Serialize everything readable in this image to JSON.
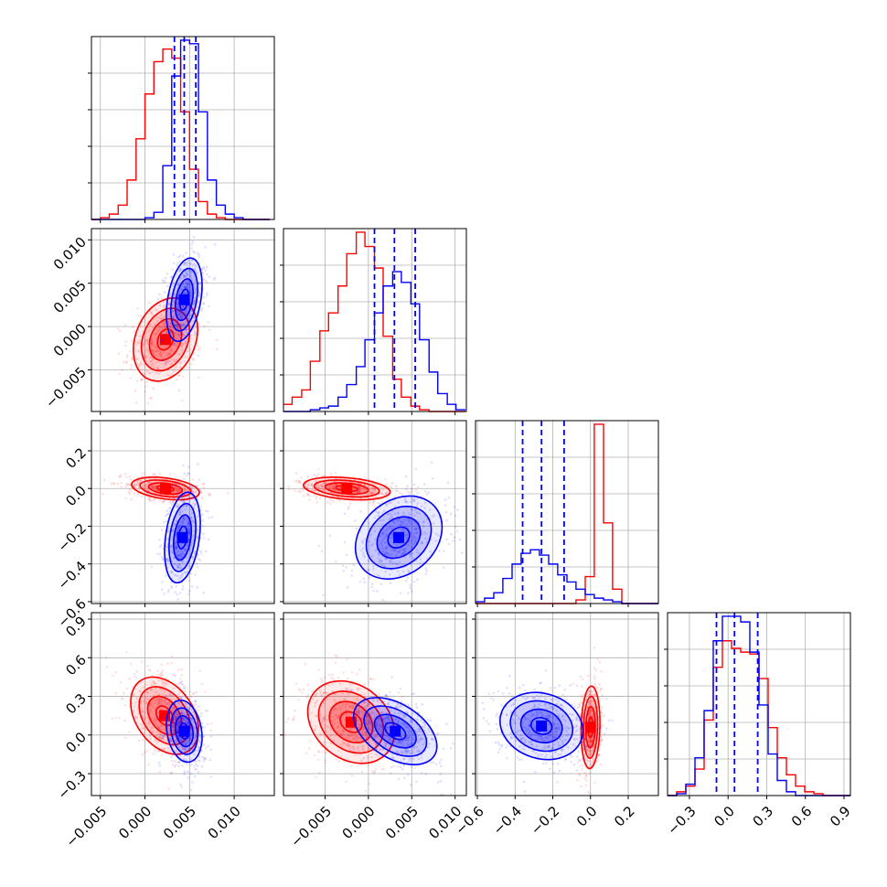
{
  "colors": {
    "series_a": "#ff0000",
    "series_b": "#0000ff"
  },
  "chart_data": {
    "type": "corner",
    "grid": true,
    "series": [
      {
        "name": "",
        "color": "#ff0000"
      },
      {
        "name": "",
        "color": "#0000ff"
      }
    ],
    "parameters": [
      {
        "index": 0,
        "range": [
          -0.006,
          0.0145
        ],
        "ticks": [
          "−0.005",
          "0.000",
          "0.005",
          "0.010"
        ],
        "tick_values": [
          -0.005,
          0.0,
          0.005,
          0.01
        ]
      },
      {
        "index": 1,
        "range": [
          -0.0098,
          0.0113
        ],
        "ticks": [
          "−0.005",
          "0.000",
          "0.005",
          "0.010"
        ],
        "tick_values": [
          -0.005,
          0.0,
          0.005,
          0.01
        ]
      },
      {
        "index": 2,
        "range": [
          -0.61,
          0.36
        ],
        "ticks": [
          "−0.6",
          "−0.4",
          "−0.2",
          "0.0",
          "0.2"
        ],
        "tick_values": [
          -0.6,
          -0.4,
          -0.2,
          0.0,
          0.2
        ]
      },
      {
        "index": 3,
        "range": [
          -0.47,
          0.95
        ],
        "ticks": [
          "−0.3",
          "0.0",
          "0.3",
          "0.6",
          "0.9"
        ],
        "tick_values": [
          -0.3,
          0.0,
          0.3,
          0.6,
          0.9
        ]
      }
    ],
    "quantile_lines": [
      [
        0.0033,
        0.0044,
        0.0057
      ],
      [
        0.0007,
        0.003,
        0.0054
      ],
      [
        -0.36,
        -0.26,
        -0.14
      ],
      [
        -0.09,
        0.05,
        0.23
      ]
    ],
    "histograms": [
      {
        "bin_edges": [
          -0.006,
          -0.005,
          -0.004,
          -0.003,
          -0.002,
          -0.001,
          0.0,
          0.001,
          0.002,
          0.003,
          0.004,
          0.005,
          0.006,
          0.007,
          0.008,
          0.009,
          0.01,
          0.011,
          0.012,
          0.013,
          0.014
        ],
        "a": [
          0,
          1,
          3,
          8,
          22,
          45,
          70,
          88,
          95,
          90,
          60,
          28,
          10,
          3,
          1,
          0,
          0,
          0,
          0,
          0
        ],
        "b": [
          0,
          0,
          0,
          0,
          0,
          0,
          1,
          4,
          30,
          80,
          100,
          98,
          60,
          22,
          8,
          3,
          1,
          0,
          0,
          0
        ]
      },
      {
        "bin_edges": [
          -0.0098,
          -0.0088,
          -0.0077,
          -0.0067,
          -0.0056,
          -0.0046,
          -0.0035,
          -0.0025,
          -0.0014,
          -0.0004,
          0.0007,
          0.0017,
          0.0028,
          0.0038,
          0.0049,
          0.0059,
          0.007,
          0.008,
          0.0091,
          0.0101,
          0.0112
        ],
        "a": [
          4,
          8,
          12,
          28,
          45,
          55,
          70,
          88,
          100,
          92,
          80,
          42,
          18,
          8,
          3,
          1,
          0,
          0,
          0,
          0
        ],
        "b": [
          0,
          0,
          0,
          1,
          2,
          3,
          8,
          15,
          25,
          40,
          55,
          70,
          78,
          72,
          60,
          40,
          22,
          10,
          4,
          1
        ]
      },
      {
        "bin_edges": [
          -0.61,
          -0.562,
          -0.513,
          -0.465,
          -0.416,
          -0.368,
          -0.319,
          -0.271,
          -0.222,
          -0.174,
          -0.125,
          -0.077,
          -0.028,
          0.02,
          0.069,
          0.117,
          0.166,
          0.214,
          0.263,
          0.311,
          0.36
        ],
        "a": [
          0,
          0,
          0,
          0,
          0,
          0,
          0,
          0,
          0,
          0,
          0,
          2,
          15,
          100,
          45,
          8,
          0,
          0,
          0,
          0
        ],
        "b": [
          1,
          3,
          6,
          14,
          22,
          28,
          30,
          27,
          22,
          16,
          12,
          8,
          5,
          3,
          2,
          1,
          0,
          0,
          0,
          0
        ]
      },
      {
        "bin_edges": [
          -0.47,
          -0.399,
          -0.328,
          -0.257,
          -0.186,
          -0.115,
          -0.044,
          0.027,
          0.098,
          0.169,
          0.24,
          0.311,
          0.382,
          0.453,
          0.524,
          0.595,
          0.666,
          0.737,
          0.808,
          0.879,
          0.95
        ],
        "a": [
          0,
          2,
          5,
          14,
          40,
          68,
          82,
          78,
          76,
          75,
          62,
          36,
          20,
          11,
          5,
          2,
          1,
          0,
          0,
          0
        ],
        "b": [
          0,
          1,
          6,
          20,
          45,
          82,
          95,
          95,
          92,
          76,
          48,
          22,
          8,
          2,
          0,
          0,
          0,
          0,
          0,
          0
        ]
      }
    ],
    "pairs": [
      {
        "x": 0,
        "y": 1,
        "a": {
          "mean": [
            0.0023,
            -0.0015
          ],
          "sd": [
            0.0018,
            0.0024
          ],
          "rho": 0.25
        },
        "b": {
          "mean": [
            0.0044,
            0.0031
          ],
          "sd": [
            0.001,
            0.0024
          ],
          "rho": 0.35
        }
      },
      {
        "x": 0,
        "y": 2,
        "a": {
          "mean": [
            0.0023,
            0.0
          ],
          "sd": [
            0.0019,
            0.03
          ],
          "rho": -0.35
        },
        "b": {
          "mean": [
            0.0042,
            -0.26
          ],
          "sd": [
            0.001,
            0.12
          ],
          "rho": 0.3
        }
      },
      {
        "x": 1,
        "y": 2,
        "a": {
          "mean": [
            -0.0025,
            0.0
          ],
          "sd": [
            0.0025,
            0.03
          ],
          "rho": -0.3
        },
        "b": {
          "mean": [
            0.0035,
            -0.26
          ],
          "sd": [
            0.0025,
            0.11
          ],
          "rho": 0.25
        }
      },
      {
        "x": 0,
        "y": 3,
        "a": {
          "mean": [
            0.0022,
            0.15
          ],
          "sd": [
            0.0019,
            0.15
          ],
          "rho": -0.35
        },
        "b": {
          "mean": [
            0.0044,
            0.03
          ],
          "sd": [
            0.001,
            0.12
          ],
          "rho": -0.2
        }
      },
      {
        "x": 1,
        "y": 3,
        "a": {
          "mean": [
            -0.002,
            0.1
          ],
          "sd": [
            0.0025,
            0.16
          ],
          "rho": -0.25
        },
        "b": {
          "mean": [
            0.0031,
            0.03
          ],
          "sd": [
            0.0024,
            0.13
          ],
          "rho": -0.45
        }
      },
      {
        "x": 2,
        "y": 3,
        "a": {
          "mean": [
            0.0,
            0.06
          ],
          "sd": [
            0.025,
            0.16
          ],
          "rho": 0.1
        },
        "b": {
          "mean": [
            -0.26,
            0.07
          ],
          "sd": [
            0.11,
            0.13
          ],
          "rho": -0.15
        }
      }
    ],
    "contour_levels_sigma": [
      0.5,
      1.0,
      1.5,
      2.0
    ]
  }
}
